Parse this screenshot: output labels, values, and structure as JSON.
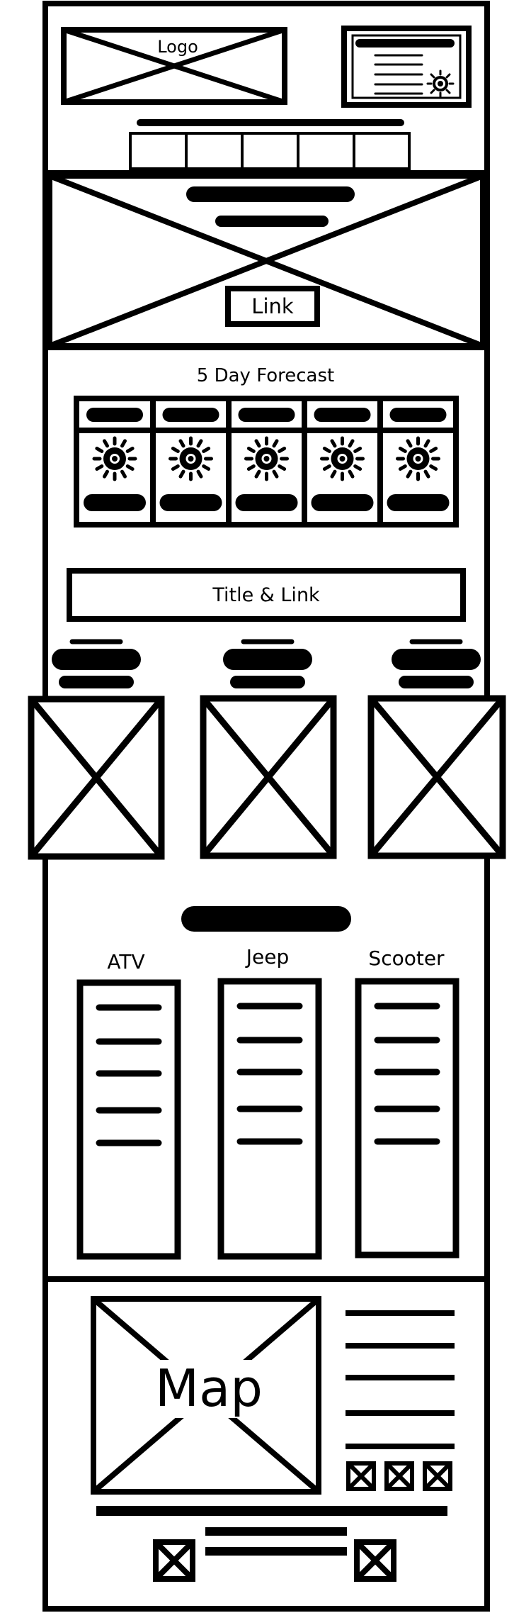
{
  "header": {
    "logo_label": "Logo"
  },
  "hero": {
    "link_label": "Link"
  },
  "forecast": {
    "title": "5 Day Forecast",
    "days": [
      {
        "icon": "sun-icon"
      },
      {
        "icon": "sun-icon"
      },
      {
        "icon": "sun-icon"
      },
      {
        "icon": "sun-icon"
      },
      {
        "icon": "sun-icon"
      }
    ]
  },
  "feature": {
    "title_link_label": "Title & Link"
  },
  "rentals": {
    "items": [
      {
        "label": "ATV"
      },
      {
        "label": "Jeep"
      },
      {
        "label": "Scooter"
      }
    ]
  },
  "footer": {
    "map_label": "Map"
  },
  "colors": {
    "stroke": "#000000",
    "background": "#ffffff"
  }
}
